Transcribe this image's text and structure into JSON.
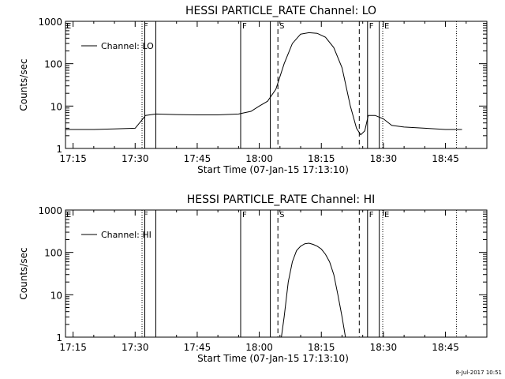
{
  "footer": {
    "timestamp": "8-Jul-2017 10:51"
  },
  "chart_data": [
    {
      "type": "line",
      "title": "HESSI PARTICLE_RATE Channel: LO",
      "xlabel": "Start Time (07-Jan-15 17:13:10)",
      "ylabel": "Counts/sec",
      "y_scale": "log",
      "xlim": [
        "17:13:10",
        "18:55:00"
      ],
      "ylim": [
        1,
        1000
      ],
      "xticks": [
        "17:15",
        "17:30",
        "17:45",
        "18:00",
        "18:15",
        "18:30",
        "18:45"
      ],
      "yticks": [
        "1",
        "10",
        "100",
        "1000"
      ],
      "legend": {
        "label": "Channel: LO",
        "placement": "top-left"
      },
      "markers": [
        {
          "label": "F",
          "time": "17:31:40",
          "style": "dotted"
        },
        {
          "label": "",
          "time": "17:32:20",
          "style": "solid"
        },
        {
          "label": "",
          "time": "17:35:00",
          "style": "solid"
        },
        {
          "label": "F",
          "time": "17:55:30",
          "style": "solid"
        },
        {
          "label": "",
          "time": "18:02:40",
          "style": "solid"
        },
        {
          "label": "S",
          "time": "18:04:30",
          "style": "dashed"
        },
        {
          "label": "",
          "time": "18:24:10",
          "style": "dashed"
        },
        {
          "label": "F",
          "time": "18:26:10",
          "style": "solid"
        },
        {
          "label": "",
          "time": "18:29:00",
          "style": "solid"
        },
        {
          "label": "E",
          "time": "18:29:50",
          "style": "dotted"
        },
        {
          "label": "",
          "time": "18:47:40",
          "style": "dotted"
        }
      ],
      "series": [
        {
          "x": [
            "17:13:10",
            "17:16:00",
            "17:20:00",
            "17:25:00",
            "17:30:00",
            "17:31:30",
            "17:32:30",
            "17:35:00",
            "17:40:00",
            "17:45:00",
            "17:50:00",
            "17:55:00",
            "17:58:00",
            "18:00:00",
            "18:02:00",
            "18:04:00",
            "18:06:00",
            "18:08:00",
            "18:10:00",
            "18:12:00",
            "18:14:00",
            "18:16:00",
            "18:18:00",
            "18:20:00",
            "18:22:00",
            "18:23:30",
            "18:24:30",
            "18:25:30",
            "18:26:20",
            "18:28:00",
            "18:30:00",
            "18:32:00",
            "18:35:00",
            "18:40:00",
            "18:45:00",
            "18:49:00"
          ],
          "y": [
            2.8,
            2.8,
            2.8,
            2.9,
            3.0,
            4.5,
            6.0,
            6.5,
            6.3,
            6.2,
            6.2,
            6.5,
            7.5,
            10,
            13,
            25,
            100,
            300,
            500,
            540,
            520,
            420,
            240,
            80,
            10,
            3,
            2.1,
            2.6,
            6.0,
            6.0,
            5.0,
            3.5,
            3.2,
            3.0,
            2.8,
            2.8
          ]
        }
      ]
    },
    {
      "type": "line",
      "title": "HESSI PARTICLE_RATE Channel: HI",
      "xlabel": "Start Time (07-Jan-15 17:13:10)",
      "ylabel": "Counts/sec",
      "y_scale": "log",
      "xlim": [
        "17:13:10",
        "18:55:00"
      ],
      "ylim": [
        1,
        1000
      ],
      "xticks": [
        "17:15",
        "17:30",
        "17:45",
        "18:00",
        "18:15",
        "18:30",
        "18:45"
      ],
      "yticks": [
        "1",
        "10",
        "100",
        "1000"
      ],
      "legend": {
        "label": "Channel: HI",
        "placement": "top-left"
      },
      "markers": [
        {
          "label": "F",
          "time": "17:31:40",
          "style": "dotted"
        },
        {
          "label": "",
          "time": "17:32:20",
          "style": "solid"
        },
        {
          "label": "",
          "time": "17:35:00",
          "style": "solid"
        },
        {
          "label": "F",
          "time": "17:55:30",
          "style": "solid"
        },
        {
          "label": "",
          "time": "18:02:40",
          "style": "solid"
        },
        {
          "label": "S",
          "time": "18:04:30",
          "style": "dashed"
        },
        {
          "label": "",
          "time": "18:24:10",
          "style": "dashed"
        },
        {
          "label": "F",
          "time": "18:26:10",
          "style": "solid"
        },
        {
          "label": "",
          "time": "18:29:00",
          "style": "solid"
        },
        {
          "label": "E",
          "time": "18:29:50",
          "style": "dotted"
        },
        {
          "label": "",
          "time": "18:47:40",
          "style": "dotted"
        }
      ],
      "series": [
        {
          "x": [
            "18:05:20",
            "18:06:00",
            "18:07:00",
            "18:08:00",
            "18:09:00",
            "18:10:00",
            "18:11:00",
            "18:12:00",
            "18:13:00",
            "18:14:00",
            "18:15:00",
            "18:16:00",
            "18:17:00",
            "18:18:00",
            "18:19:00",
            "18:20:00",
            "18:20:50"
          ],
          "y": [
            1.0,
            3.0,
            20,
            60,
            110,
            140,
            160,
            165,
            155,
            140,
            120,
            90,
            60,
            30,
            10,
            3,
            1.0
          ]
        }
      ]
    }
  ]
}
